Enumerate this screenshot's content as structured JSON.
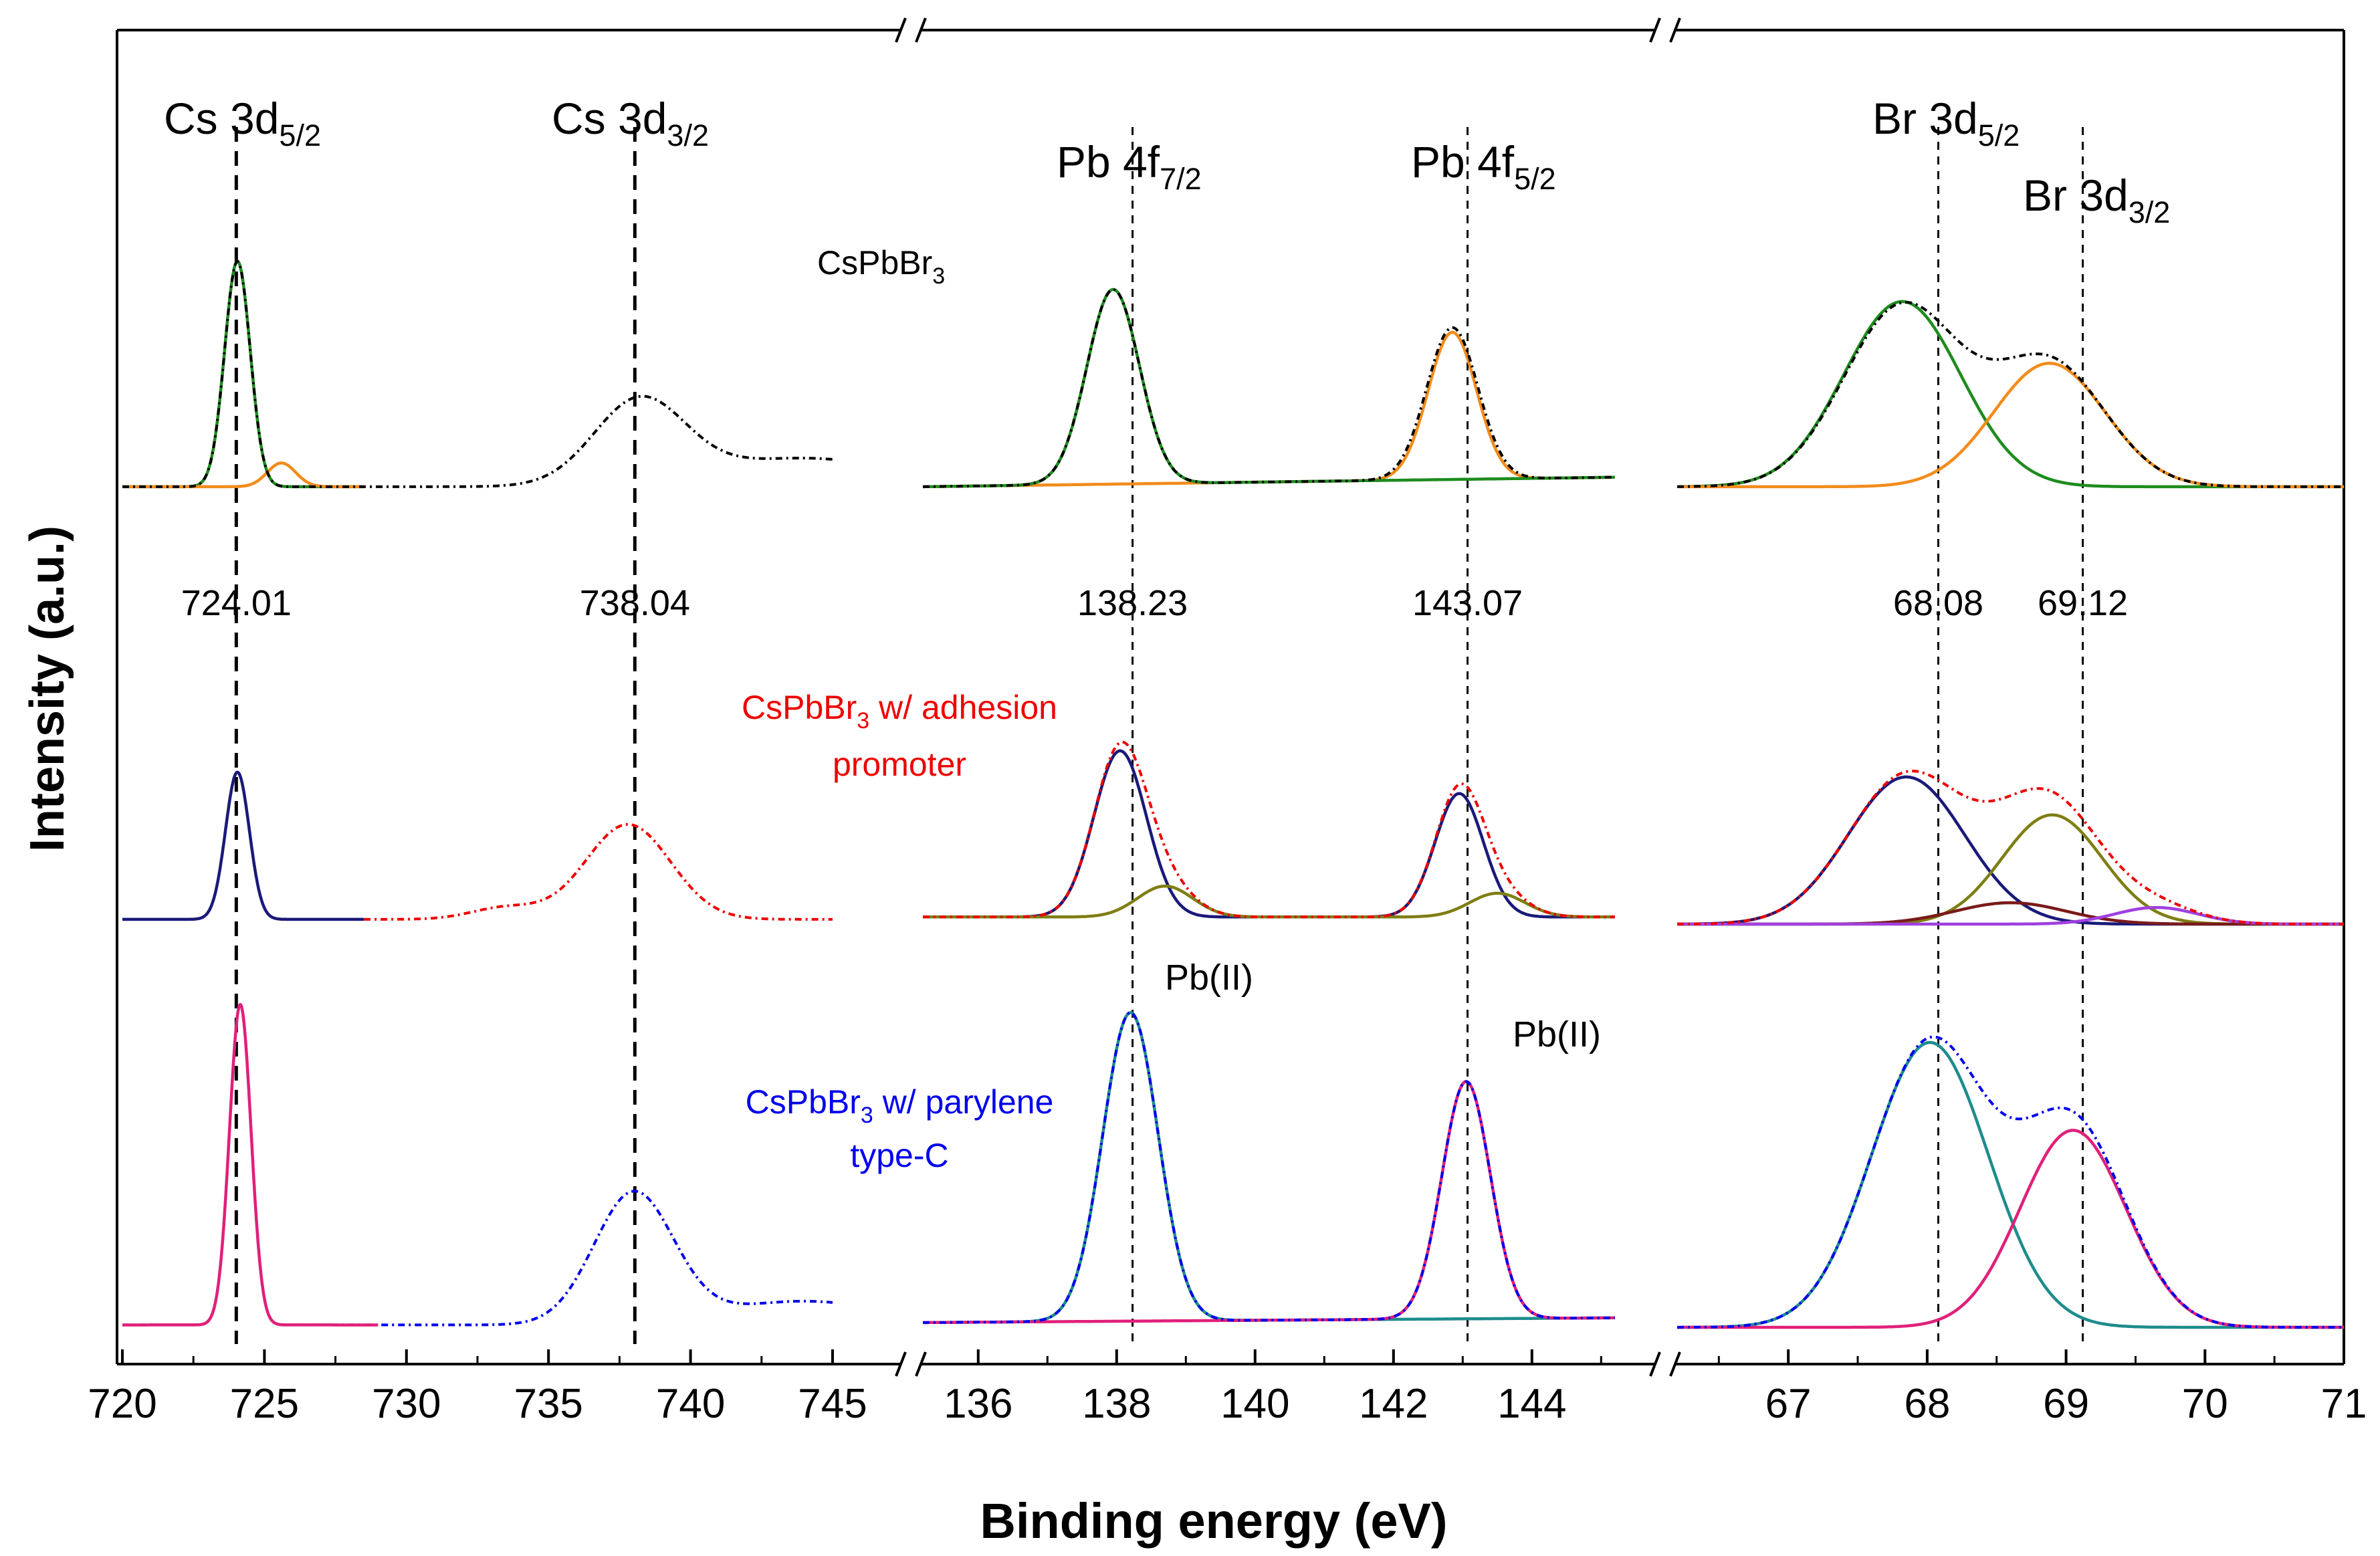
{
  "chart_data": {
    "type": "line",
    "ylabel": "Intensity (a.u.)",
    "xlabel": "Binding energy (eV)",
    "panels": [
      {
        "name": "Cs 3d",
        "xlim": [
          720,
          745
        ],
        "ticks": [
          720,
          725,
          730,
          735,
          740,
          745
        ],
        "peak_labels": [
          {
            "main": "Cs 3d",
            "sub": "5/2",
            "x": 724.01
          },
          {
            "main": "Cs 3d",
            "sub": "3/2",
            "x": 738.04
          }
        ],
        "ref_lines": [
          724.01,
          738.04
        ],
        "ref_values": [
          "724.01",
          "738.04"
        ]
      },
      {
        "name": "Pb 4f",
        "xlim": [
          135.2,
          145.2
        ],
        "ticks": [
          136,
          138,
          140,
          142,
          144
        ],
        "peak_labels": [
          {
            "main": "Pb 4f",
            "sub": "7/2",
            "x": 138.23
          },
          {
            "main": "Pb 4f",
            "sub": "5/2",
            "x": 143.07
          }
        ],
        "ref_lines": [
          138.23,
          143.07
        ],
        "ref_values": [
          "138.23",
          "143.07"
        ]
      },
      {
        "name": "Br 3d",
        "xlim": [
          66.2,
          71
        ],
        "ticks": [
          67,
          68,
          69,
          70,
          71
        ],
        "peak_labels": [
          {
            "main": "Br 3d",
            "sub": "5/2",
            "x": 68.08
          },
          {
            "main": "Br 3d",
            "sub": "3/2",
            "x": 69.12
          }
        ],
        "ref_lines": [
          68.08,
          69.12
        ],
        "ref_values": [
          "68.08",
          "69.12"
        ]
      }
    ],
    "samples": [
      {
        "main": "CsPbBr",
        "sub": "3",
        "rest": "",
        "line2": "",
        "color": "#000000"
      },
      {
        "main": "CsPbBr",
        "sub": "3",
        "rest": " w/ adhesion",
        "line2": "promoter",
        "color": "#ee0000"
      },
      {
        "main": "CsPbBr",
        "sub": "3",
        "rest": " w/ parylene",
        "line2": "type-C",
        "color": "#0000ee"
      }
    ],
    "annotations": [
      "Pb(II)",
      "Pb(II)"
    ],
    "series": [
      {
        "panel": 0,
        "row": 0,
        "kind": "fit",
        "color": "#1e8c1e",
        "baseline": 0.02,
        "x_range": [
          720,
          728.5
        ],
        "components": [
          {
            "center": 724.05,
            "height": 0.95,
            "width": 0.45
          }
        ]
      },
      {
        "panel": 0,
        "row": 0,
        "kind": "fit",
        "color": "#f28c1c",
        "baseline": 0.02,
        "x_range": [
          720,
          728.5
        ],
        "components": [
          {
            "center": 725.6,
            "height": 0.1,
            "width": 0.5
          }
        ]
      },
      {
        "panel": 0,
        "row": 0,
        "kind": "raw",
        "color": "#000000",
        "dash": "10,6,3,6",
        "baseline": 0.02,
        "x_range": [
          720,
          745
        ],
        "components": [
          {
            "center": 724.05,
            "height": 0.95,
            "width": 0.45
          },
          {
            "center": 738.2,
            "height": 0.35,
            "width": 1.6
          },
          {
            "center": 744.0,
            "height": 0.12,
            "width": 3.5
          }
        ]
      },
      {
        "panel": 1,
        "row": 0,
        "kind": "fit",
        "color": "#f28c1c",
        "baseline": 0.02,
        "x_range": [
          135.2,
          145.2
        ],
        "slope": 0.004,
        "components": [
          {
            "center": 142.85,
            "height": 0.62,
            "width": 0.35
          }
        ]
      },
      {
        "panel": 1,
        "row": 0,
        "kind": "fit",
        "color": "#1e8c1e",
        "baseline": 0.02,
        "x_range": [
          135.2,
          145.2
        ],
        "slope": 0.004,
        "components": [
          {
            "center": 137.95,
            "height": 0.82,
            "width": 0.38
          }
        ]
      },
      {
        "panel": 1,
        "row": 0,
        "kind": "raw",
        "color": "#000000",
        "dash": "10,6,3,6",
        "baseline": 0.02,
        "x_range": [
          135.2,
          145.2
        ],
        "slope": 0.004,
        "components": [
          {
            "center": 137.95,
            "height": 0.82,
            "width": 0.38
          },
          {
            "center": 142.85,
            "height": 0.64,
            "width": 0.37
          }
        ]
      },
      {
        "panel": 2,
        "row": 0,
        "kind": "fit",
        "color": "#1e8c1e",
        "baseline": 0.02,
        "x_range": [
          66.2,
          71
        ],
        "components": [
          {
            "center": 67.82,
            "height": 0.78,
            "width": 0.42
          }
        ]
      },
      {
        "panel": 2,
        "row": 0,
        "kind": "fit",
        "color": "#f28c1c",
        "baseline": 0.02,
        "x_range": [
          66.2,
          71
        ],
        "components": [
          {
            "center": 68.88,
            "height": 0.52,
            "width": 0.4
          }
        ]
      },
      {
        "panel": 2,
        "row": 0,
        "kind": "raw",
        "color": "#000000",
        "dash": "10,6,3,6",
        "baseline": 0.02,
        "x_range": [
          66.2,
          71
        ],
        "components": [
          {
            "center": 67.82,
            "height": 0.76,
            "width": 0.42
          },
          {
            "center": 68.88,
            "height": 0.52,
            "width": 0.4
          }
        ]
      },
      {
        "panel": 0,
        "row": 1,
        "kind": "fit",
        "color": "#1a1a7a",
        "baseline": 0.02,
        "x_range": [
          720,
          728.5
        ],
        "components": [
          {
            "center": 724.05,
            "height": 0.62,
            "width": 0.42
          }
        ]
      },
      {
        "panel": 0,
        "row": 1,
        "kind": "raw",
        "color": "#ee0000",
        "dash": "10,6,3,6",
        "baseline": 0.02,
        "x_range": [
          728.5,
          745
        ],
        "components": [
          {
            "center": 737.8,
            "height": 0.4,
            "width": 1.5
          },
          {
            "center": 733.5,
            "height": 0.05,
            "width": 1.2
          }
        ]
      },
      {
        "panel": 1,
        "row": 1,
        "kind": "fit",
        "color": "#1a1a7a",
        "baseline": 0.03,
        "x_range": [
          135.2,
          145.2
        ],
        "components": [
          {
            "center": 138.05,
            "height": 0.7,
            "width": 0.38
          },
          {
            "center": 142.95,
            "height": 0.52,
            "width": 0.35
          }
        ]
      },
      {
        "panel": 1,
        "row": 1,
        "kind": "fit",
        "color": "#7e7e14",
        "baseline": 0.03,
        "x_range": [
          135.2,
          145.2
        ],
        "components": [
          {
            "center": 138.7,
            "height": 0.13,
            "width": 0.4
          },
          {
            "center": 143.5,
            "height": 0.1,
            "width": 0.4
          }
        ]
      },
      {
        "panel": 1,
        "row": 1,
        "kind": "raw",
        "color": "#ee0000",
        "dash": "10,6,3,6",
        "baseline": 0.03,
        "x_range": [
          135.2,
          145.2
        ],
        "components": [
          {
            "center": 138.05,
            "height": 0.7,
            "width": 0.38
          },
          {
            "center": 138.7,
            "height": 0.13,
            "width": 0.4
          },
          {
            "center": 142.95,
            "height": 0.52,
            "width": 0.35
          },
          {
            "center": 143.5,
            "height": 0.1,
            "width": 0.4
          }
        ]
      },
      {
        "panel": 2,
        "row": 1,
        "kind": "fit",
        "color": "#1a1a7a",
        "baseline": 0.0,
        "x_range": [
          66.2,
          71
        ],
        "components": [
          {
            "center": 67.85,
            "height": 0.62,
            "width": 0.42
          }
        ]
      },
      {
        "panel": 2,
        "row": 1,
        "kind": "fit",
        "color": "#7e7e14",
        "baseline": 0.0,
        "x_range": [
          66.2,
          71
        ],
        "components": [
          {
            "center": 68.9,
            "height": 0.46,
            "width": 0.36
          }
        ]
      },
      {
        "panel": 2,
        "row": 1,
        "kind": "fit",
        "color": "#7a1a1a",
        "baseline": 0.0,
        "x_range": [
          66.2,
          71
        ],
        "components": [
          {
            "center": 68.6,
            "height": 0.09,
            "width": 0.4
          }
        ]
      },
      {
        "panel": 2,
        "row": 1,
        "kind": "fit",
        "color": "#a040e0",
        "baseline": 0.0,
        "x_range": [
          66.2,
          71
        ],
        "components": [
          {
            "center": 69.65,
            "height": 0.07,
            "width": 0.3
          }
        ]
      },
      {
        "panel": 2,
        "row": 1,
        "kind": "raw",
        "color": "#ee0000",
        "dash": "10,6,3,6",
        "baseline": 0.0,
        "x_range": [
          66.2,
          71
        ],
        "components": [
          {
            "center": 67.85,
            "height": 0.62,
            "width": 0.42
          },
          {
            "center": 68.9,
            "height": 0.46,
            "width": 0.36
          },
          {
            "center": 68.6,
            "height": 0.09,
            "width": 0.4
          },
          {
            "center": 69.65,
            "height": 0.07,
            "width": 0.3
          }
        ]
      },
      {
        "panel": 0,
        "row": 2,
        "kind": "raw",
        "color": "#0000ee",
        "dash": "10,6,3,6",
        "baseline": 0.01,
        "x_range": [
          720,
          745
        ],
        "components": [
          {
            "center": 724.15,
            "height": 1.35,
            "width": 0.38
          },
          {
            "center": 738.0,
            "height": 0.55,
            "width": 1.4
          },
          {
            "center": 744.0,
            "height": 0.1,
            "width": 3.0
          }
        ]
      },
      {
        "panel": 0,
        "row": 2,
        "kind": "fit",
        "color": "#e0207a",
        "baseline": 0.01,
        "x_range": [
          720,
          729
        ],
        "components": [
          {
            "center": 724.15,
            "height": 1.35,
            "width": 0.38
          }
        ]
      },
      {
        "panel": 1,
        "row": 2,
        "kind": "fit",
        "color": "#1e8c8c",
        "baseline": 0.02,
        "x_range": [
          135.2,
          145.2
        ],
        "slope": 0.002,
        "components": [
          {
            "center": 138.2,
            "height": 1.3,
            "width": 0.4
          }
        ]
      },
      {
        "panel": 1,
        "row": 2,
        "kind": "fit",
        "color": "#e0207a",
        "baseline": 0.02,
        "x_range": [
          135.2,
          145.2
        ],
        "slope": 0.002,
        "components": [
          {
            "center": 143.05,
            "height": 1.0,
            "width": 0.35
          }
        ]
      },
      {
        "panel": 1,
        "row": 2,
        "kind": "raw",
        "color": "#0000ee",
        "dash": "10,6,3,6",
        "baseline": 0.02,
        "x_range": [
          135.2,
          145.2
        ],
        "slope": 0.002,
        "components": [
          {
            "center": 138.2,
            "height": 1.3,
            "width": 0.4
          },
          {
            "center": 143.05,
            "height": 1.0,
            "width": 0.35
          }
        ]
      },
      {
        "panel": 2,
        "row": 2,
        "kind": "fit",
        "color": "#1e8c8c",
        "baseline": 0.0,
        "x_range": [
          66.2,
          71
        ],
        "components": [
          {
            "center": 68.02,
            "height": 1.2,
            "width": 0.42
          }
        ]
      },
      {
        "panel": 2,
        "row": 2,
        "kind": "fit",
        "color": "#e0207a",
        "baseline": 0.0,
        "x_range": [
          66.2,
          71
        ],
        "components": [
          {
            "center": 69.05,
            "height": 0.83,
            "width": 0.38
          }
        ]
      },
      {
        "panel": 2,
        "row": 2,
        "kind": "raw",
        "color": "#0000ee",
        "dash": "10,6,3,6",
        "baseline": 0.0,
        "x_range": [
          66.2,
          71
        ],
        "components": [
          {
            "center": 68.02,
            "height": 1.2,
            "width": 0.42
          },
          {
            "center": 69.05,
            "height": 0.85,
            "width": 0.38
          }
        ]
      }
    ]
  }
}
